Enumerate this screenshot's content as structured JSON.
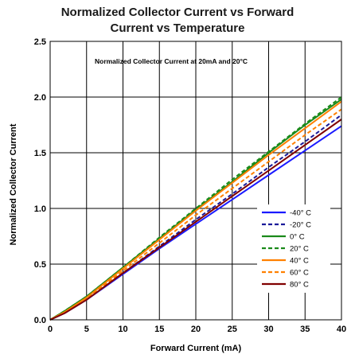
{
  "chart_data": {
    "type": "line",
    "title": [
      "Normalized Collector Current vs Forward",
      "Current vs Temperature"
    ],
    "xlabel": "Forward Current (mA)",
    "ylabel": "Normalized Collector Current",
    "annotation": "Normalized Collector Current at 20mA and 20°C",
    "xlim": [
      0,
      40
    ],
    "ylim": [
      0,
      2.5
    ],
    "x_ticks": [
      "0",
      "5",
      "10",
      "15",
      "20",
      "25",
      "30",
      "35",
      "40"
    ],
    "y_ticks": [
      "0.0",
      "0.5",
      "1.0",
      "1.5",
      "2.0",
      "2.5"
    ],
    "grid": true,
    "legend_position": "bottom-right",
    "series": [
      {
        "name": "-40° C",
        "color": "#1a1aff",
        "dash": "solid",
        "x": [
          0,
          2,
          5,
          10,
          15,
          20,
          25,
          30,
          35,
          40
        ],
        "y": [
          0.0,
          0.06,
          0.18,
          0.41,
          0.64,
          0.86,
          1.08,
          1.3,
          1.52,
          1.74
        ]
      },
      {
        "name": "-20° C",
        "color": "#1a1a99",
        "dash": "dashed",
        "x": [
          0,
          2,
          5,
          10,
          15,
          20,
          25,
          30,
          35,
          40
        ],
        "y": [
          0.0,
          0.07,
          0.19,
          0.42,
          0.66,
          0.9,
          1.13,
          1.37,
          1.6,
          1.84
        ]
      },
      {
        "name": "0° C",
        "color": "#1a8a1a",
        "dash": "solid",
        "x": [
          0,
          2,
          5,
          10,
          15,
          20,
          25,
          30,
          35,
          40
        ],
        "y": [
          0.0,
          0.08,
          0.21,
          0.47,
          0.73,
          0.99,
          1.24,
          1.5,
          1.75,
          1.98
        ]
      },
      {
        "name": "20° C",
        "color": "#1a8a1a",
        "dash": "dashed",
        "x": [
          0,
          2,
          5,
          10,
          15,
          20,
          25,
          30,
          35,
          40
        ],
        "y": [
          0.0,
          0.08,
          0.21,
          0.47,
          0.74,
          1.0,
          1.26,
          1.51,
          1.76,
          2.0
        ]
      },
      {
        "name": "40° C",
        "color": "#ff8000",
        "dash": "solid",
        "x": [
          0,
          2,
          5,
          10,
          15,
          20,
          25,
          30,
          35,
          40
        ],
        "y": [
          0.0,
          0.07,
          0.2,
          0.46,
          0.72,
          0.98,
          1.23,
          1.48,
          1.72,
          1.96
        ]
      },
      {
        "name": "60° C",
        "color": "#ff8000",
        "dash": "dashed",
        "x": [
          0,
          2,
          5,
          10,
          15,
          20,
          25,
          30,
          35,
          40
        ],
        "y": [
          0.0,
          0.07,
          0.19,
          0.44,
          0.69,
          0.94,
          1.18,
          1.42,
          1.66,
          1.89
        ]
      },
      {
        "name": "80° C",
        "color": "#800000",
        "dash": "solid",
        "x": [
          0,
          2,
          5,
          10,
          15,
          20,
          25,
          30,
          35,
          40
        ],
        "y": [
          0.0,
          0.06,
          0.18,
          0.42,
          0.65,
          0.88,
          1.11,
          1.34,
          1.57,
          1.8
        ]
      }
    ]
  }
}
